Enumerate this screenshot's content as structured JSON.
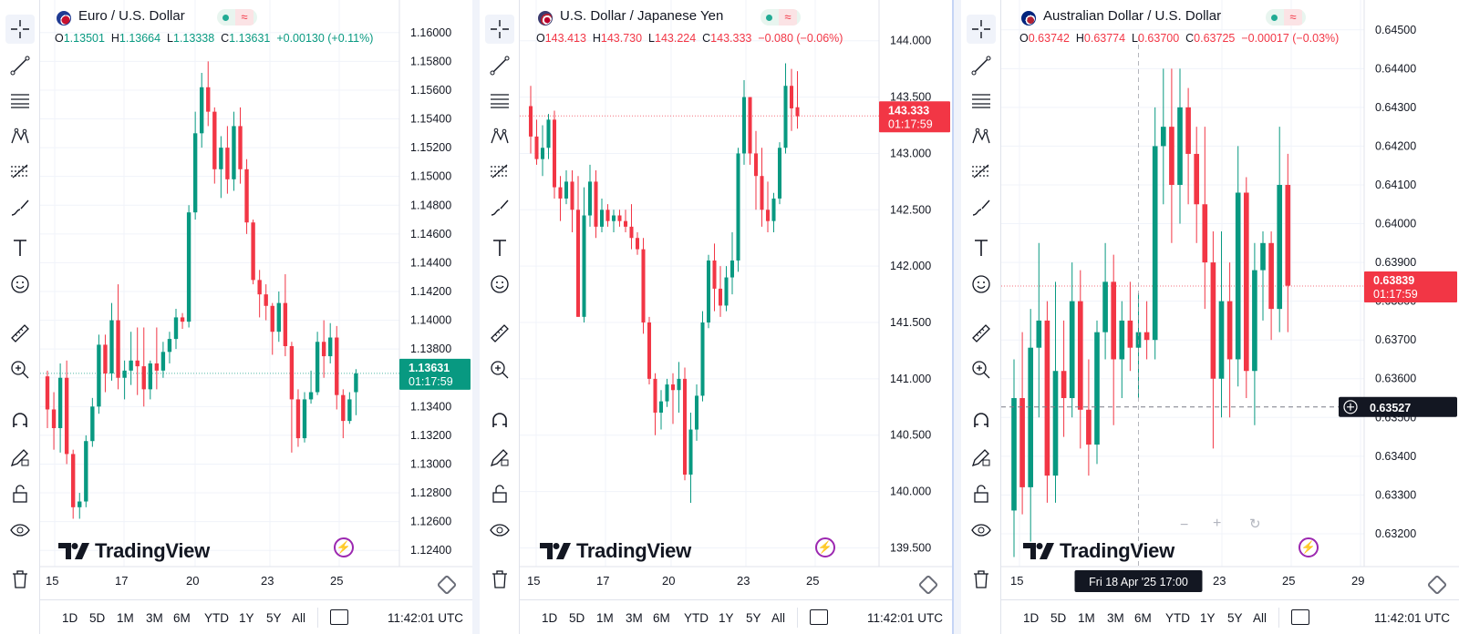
{
  "toolbar_icons": [
    "crosshair-icon",
    "trend-line-icon",
    "horizontal-lines-icon",
    "pattern-icon",
    "fib-icon",
    "brush-icon",
    "text-icon",
    "emoji-icon",
    "ruler-icon",
    "zoom-in-icon",
    "magnet-icon",
    "lock-pencil-icon",
    "unlock-icon",
    "eye-icon",
    "trash-icon"
  ],
  "timeframes": [
    "1D",
    "5D",
    "1M",
    "3M",
    "6M",
    "YTD",
    "1Y",
    "5Y",
    "All"
  ],
  "colors": {
    "up": "#089981",
    "down": "#f23645",
    "grid": "#f0f3fa",
    "text": "#131722"
  },
  "panels": [
    {
      "title": "Euro / U.S. Dollar",
      "flag": "eu-us-flag-icon",
      "ohlc": {
        "o_label": "O",
        "o": "1.13501",
        "h_label": "H",
        "h": "1.13664",
        "l_label": "L",
        "l": "1.13338",
        "c_label": "C",
        "c": "1.13631",
        "change": "+0.00130 (+0.11%)",
        "dir": "up"
      },
      "yticks": [
        "1.16000",
        "1.15800",
        "1.15600",
        "1.15400",
        "1.15200",
        "1.15000",
        "1.14800",
        "1.14600",
        "1.14400",
        "1.14200",
        "1.14000",
        "1.13800",
        "1.13600",
        "1.13400",
        "1.13200",
        "1.13000",
        "1.12800",
        "1.12600",
        "1.12400"
      ],
      "xticks": [
        "15",
        "17",
        "20",
        "23",
        "25"
      ],
      "price_tag": {
        "price": "1.13631",
        "countdown": "01:17:59",
        "dir": "up"
      },
      "clock": "11:42:01 UTC",
      "watermark": "TradingView",
      "chart_data": {
        "type": "candlestick",
        "ylim": [
          1.123,
          1.161
        ],
        "last": 1.13631,
        "candles": [
          [
            1.1361,
            1.1365,
            1.1325,
            1.1338
          ],
          [
            1.1338,
            1.135,
            1.131,
            1.1325
          ],
          [
            1.1325,
            1.137,
            1.1308,
            1.136
          ],
          [
            1.136,
            1.1372,
            1.13,
            1.1307
          ],
          [
            1.1307,
            1.131,
            1.1262,
            1.127
          ],
          [
            1.127,
            1.128,
            1.1262,
            1.1274
          ],
          [
            1.1274,
            1.132,
            1.127,
            1.1316
          ],
          [
            1.1316,
            1.1346,
            1.1312,
            1.134
          ],
          [
            1.134,
            1.139,
            1.1335,
            1.1383
          ],
          [
            1.1383,
            1.139,
            1.135,
            1.1363
          ],
          [
            1.1363,
            1.1412,
            1.1358,
            1.14
          ],
          [
            1.14,
            1.1425,
            1.1352,
            1.136
          ],
          [
            1.136,
            1.1372,
            1.1345,
            1.1365
          ],
          [
            1.1365,
            1.1392,
            1.1355,
            1.1372
          ],
          [
            1.1372,
            1.1395,
            1.1348,
            1.1368
          ],
          [
            1.1368,
            1.1395,
            1.134,
            1.1352
          ],
          [
            1.1352,
            1.1372,
            1.1345,
            1.137
          ],
          [
            1.137,
            1.1395,
            1.1352,
            1.1365
          ],
          [
            1.1365,
            1.1385,
            1.136,
            1.1378
          ],
          [
            1.1378,
            1.1392,
            1.137,
            1.1387
          ],
          [
            1.1387,
            1.1408,
            1.138,
            1.1402
          ],
          [
            1.1402,
            1.1405,
            1.1394,
            1.1399
          ],
          [
            1.1399,
            1.148,
            1.1395,
            1.1475
          ],
          [
            1.1475,
            1.1545,
            1.147,
            1.153
          ],
          [
            1.153,
            1.1572,
            1.152,
            1.1562
          ],
          [
            1.1562,
            1.158,
            1.1535,
            1.1545
          ],
          [
            1.1545,
            1.1548,
            1.1495,
            1.1505
          ],
          [
            1.1505,
            1.1528,
            1.1485,
            1.152
          ],
          [
            1.152,
            1.1535,
            1.1488,
            1.1498
          ],
          [
            1.1498,
            1.1545,
            1.149,
            1.1535
          ],
          [
            1.1535,
            1.1548,
            1.1495,
            1.1505
          ],
          [
            1.1505,
            1.1512,
            1.146,
            1.1468
          ],
          [
            1.1468,
            1.147,
            1.1425,
            1.1428
          ],
          [
            1.1428,
            1.1435,
            1.1402,
            1.1418
          ],
          [
            1.1418,
            1.1425,
            1.14,
            1.141
          ],
          [
            1.141,
            1.1412,
            1.1376,
            1.1392
          ],
          [
            1.1392,
            1.142,
            1.1385,
            1.1412
          ],
          [
            1.1412,
            1.1432,
            1.1375,
            1.1382
          ],
          [
            1.1382,
            1.1385,
            1.1308,
            1.1345
          ],
          [
            1.1345,
            1.1352,
            1.1312,
            1.1318
          ],
          [
            1.1318,
            1.135,
            1.1315,
            1.1345
          ],
          [
            1.1345,
            1.1365,
            1.1342,
            1.135
          ],
          [
            1.135,
            1.1392,
            1.1348,
            1.1385
          ],
          [
            1.1385,
            1.14,
            1.136,
            1.1375
          ],
          [
            1.1375,
            1.1398,
            1.137,
            1.1388
          ],
          [
            1.1388,
            1.1396,
            1.1338,
            1.1348
          ],
          [
            1.1348,
            1.1352,
            1.1318,
            1.133
          ],
          [
            1.133,
            1.135,
            1.1328,
            1.1345
          ],
          [
            1.135,
            1.1366,
            1.1334,
            1.1363
          ]
        ]
      }
    },
    {
      "title": "U.S. Dollar / Japanese Yen",
      "flag": "us-jp-flag-icon",
      "ohlc": {
        "o_label": "O",
        "o": "143.413",
        "h_label": "H",
        "h": "143.730",
        "l_label": "L",
        "l": "143.224",
        "c_label": "C",
        "c": "143.333",
        "change": "−0.080 (−0.06%)",
        "dir": "down"
      },
      "yticks": [
        "144.000",
        "143.500",
        "143.000",
        "142.500",
        "142.000",
        "141.500",
        "141.000",
        "140.500",
        "140.000",
        "139.500"
      ],
      "xticks": [
        "15",
        "17",
        "20",
        "23",
        "25"
      ],
      "price_tag": {
        "price": "143.333",
        "countdown": "01:17:59",
        "dir": "down"
      },
      "clock": "11:42:01 UTC",
      "watermark": "TradingView",
      "chart_data": {
        "type": "candlestick",
        "ylim": [
          139.35,
          144.2
        ],
        "last": 143.333,
        "candles": [
          [
            143.42,
            143.6,
            143.0,
            143.15
          ],
          [
            143.15,
            143.3,
            142.9,
            142.95
          ],
          [
            142.95,
            143.25,
            142.8,
            143.05
          ],
          [
            143.05,
            143.35,
            142.95,
            143.3
          ],
          [
            143.3,
            143.38,
            142.6,
            142.7
          ],
          [
            142.7,
            142.8,
            142.4,
            142.6
          ],
          [
            142.6,
            142.85,
            142.55,
            142.75
          ],
          [
            142.75,
            142.85,
            142.3,
            142.5
          ],
          [
            142.5,
            142.8,
            141.55,
            141.55
          ],
          [
            141.55,
            142.7,
            141.5,
            142.45
          ],
          [
            142.45,
            142.9,
            142.35,
            142.75
          ],
          [
            142.75,
            142.85,
            142.25,
            142.35
          ],
          [
            142.35,
            142.6,
            142.3,
            142.5
          ],
          [
            142.5,
            142.55,
            142.35,
            142.4
          ],
          [
            142.4,
            142.5,
            142.3,
            142.45
          ],
          [
            142.45,
            142.5,
            142.35,
            142.4
          ],
          [
            142.4,
            142.5,
            142.3,
            142.35
          ],
          [
            142.35,
            142.55,
            142.15,
            142.25
          ],
          [
            142.25,
            142.3,
            142.1,
            142.15
          ],
          [
            142.15,
            142.25,
            141.4,
            141.5
          ],
          [
            141.5,
            141.55,
            140.95,
            141.0
          ],
          [
            141.0,
            141.05,
            140.5,
            140.7
          ],
          [
            140.7,
            140.9,
            140.55,
            140.8
          ],
          [
            140.8,
            141.0,
            140.75,
            140.95
          ],
          [
            140.95,
            141.05,
            140.6,
            140.9
          ],
          [
            140.9,
            141.15,
            140.7,
            141.0
          ],
          [
            141.0,
            141.1,
            140.1,
            140.15
          ],
          [
            140.15,
            140.7,
            139.9,
            140.55
          ],
          [
            140.55,
            140.95,
            140.45,
            140.85
          ],
          [
            140.85,
            141.6,
            140.8,
            141.5
          ],
          [
            141.5,
            142.1,
            141.45,
            142.05
          ],
          [
            142.05,
            142.2,
            141.6,
            141.8
          ],
          [
            141.8,
            142.0,
            141.55,
            141.65
          ],
          [
            141.65,
            142.0,
            141.6,
            141.9
          ],
          [
            141.9,
            142.3,
            141.75,
            142.05
          ],
          [
            142.05,
            143.05,
            141.95,
            143.0
          ],
          [
            143.0,
            143.65,
            142.9,
            143.5
          ],
          [
            143.5,
            143.5,
            142.9,
            143.0
          ],
          [
            143.0,
            143.2,
            142.5,
            142.8
          ],
          [
            142.8,
            143.05,
            142.35,
            142.5
          ],
          [
            142.5,
            142.75,
            142.3,
            142.4
          ],
          [
            142.4,
            142.65,
            142.3,
            142.6
          ],
          [
            142.6,
            143.1,
            142.55,
            143.05
          ],
          [
            143.05,
            143.8,
            143.0,
            143.6
          ],
          [
            143.6,
            143.75,
            143.2,
            143.4
          ],
          [
            143.41,
            143.73,
            143.22,
            143.33
          ]
        ]
      }
    },
    {
      "title": "Australian Dollar / U.S. Dollar",
      "flag": "au-us-flag-icon",
      "ohlc": {
        "o_label": "O",
        "o": "0.63742",
        "h_label": "H",
        "h": "0.63774",
        "l_label": "L",
        "l": "0.63700",
        "c_label": "C",
        "c": "0.63725",
        "change": "−0.00017 (−0.03%)",
        "dir": "down"
      },
      "yticks": [
        "0.64500",
        "0.64400",
        "0.64300",
        "0.64200",
        "0.64100",
        "0.64000",
        "0.63900",
        "0.63800",
        "0.63700",
        "0.63600",
        "0.63500",
        "0.63400",
        "0.63300",
        "0.63200"
      ],
      "xticks": [
        "15",
        "23",
        "25",
        "29"
      ],
      "price_tag": {
        "price": "0.63839",
        "countdown": "01:17:59",
        "dir": "down"
      },
      "crosshair_price": "0.63527",
      "crosshair_time": "Fri 18 Apr '25   17:00",
      "clock": "11:42:01 UTC",
      "watermark": "TradingView",
      "chart_data": {
        "type": "candlestick",
        "ylim": [
          0.6312,
          0.6453
        ],
        "last": 0.63839,
        "candles": [
          [
            0.6326,
            0.6365,
            0.6314,
            0.6355
          ],
          [
            0.6355,
            0.6372,
            0.6325,
            0.6332
          ],
          [
            0.6332,
            0.6378,
            0.6318,
            0.6368
          ],
          [
            0.6368,
            0.6395,
            0.635,
            0.6375
          ],
          [
            0.6375,
            0.638,
            0.6328,
            0.6335
          ],
          [
            0.6335,
            0.6385,
            0.6328,
            0.6362
          ],
          [
            0.6362,
            0.6375,
            0.6345,
            0.6355
          ],
          [
            0.6355,
            0.639,
            0.635,
            0.638
          ],
          [
            0.638,
            0.6388,
            0.6342,
            0.6352
          ],
          [
            0.6352,
            0.6365,
            0.6335,
            0.6343
          ],
          [
            0.6343,
            0.6375,
            0.6338,
            0.6372
          ],
          [
            0.6372,
            0.6395,
            0.6365,
            0.6385
          ],
          [
            0.6385,
            0.6392,
            0.6348,
            0.6365
          ],
          [
            0.6365,
            0.638,
            0.6355,
            0.6375
          ],
          [
            0.6375,
            0.6385,
            0.6362,
            0.6368
          ],
          [
            0.6368,
            0.6382,
            0.6355,
            0.6372
          ],
          [
            0.6372,
            0.638,
            0.6365,
            0.637
          ],
          [
            0.637,
            0.643,
            0.6365,
            0.642
          ],
          [
            0.642,
            0.644,
            0.6405,
            0.6425
          ],
          [
            0.6425,
            0.644,
            0.6395,
            0.641
          ],
          [
            0.641,
            0.644,
            0.64,
            0.643
          ],
          [
            0.643,
            0.6435,
            0.6405,
            0.6418
          ],
          [
            0.6418,
            0.6425,
            0.6395,
            0.6405
          ],
          [
            0.6405,
            0.6425,
            0.6378,
            0.639
          ],
          [
            0.639,
            0.6398,
            0.6342,
            0.636
          ],
          [
            0.636,
            0.6398,
            0.635,
            0.638
          ],
          [
            0.638,
            0.639,
            0.635,
            0.6365
          ],
          [
            0.6365,
            0.642,
            0.6358,
            0.6408
          ],
          [
            0.6408,
            0.6412,
            0.6355,
            0.6362
          ],
          [
            0.6362,
            0.6395,
            0.6348,
            0.6388
          ],
          [
            0.6388,
            0.6398,
            0.6375,
            0.6395
          ],
          [
            0.6395,
            0.6398,
            0.637,
            0.6378
          ],
          [
            0.6378,
            0.6425,
            0.6372,
            0.641
          ],
          [
            0.641,
            0.6418,
            0.6372,
            0.6384
          ]
        ]
      }
    }
  ]
}
